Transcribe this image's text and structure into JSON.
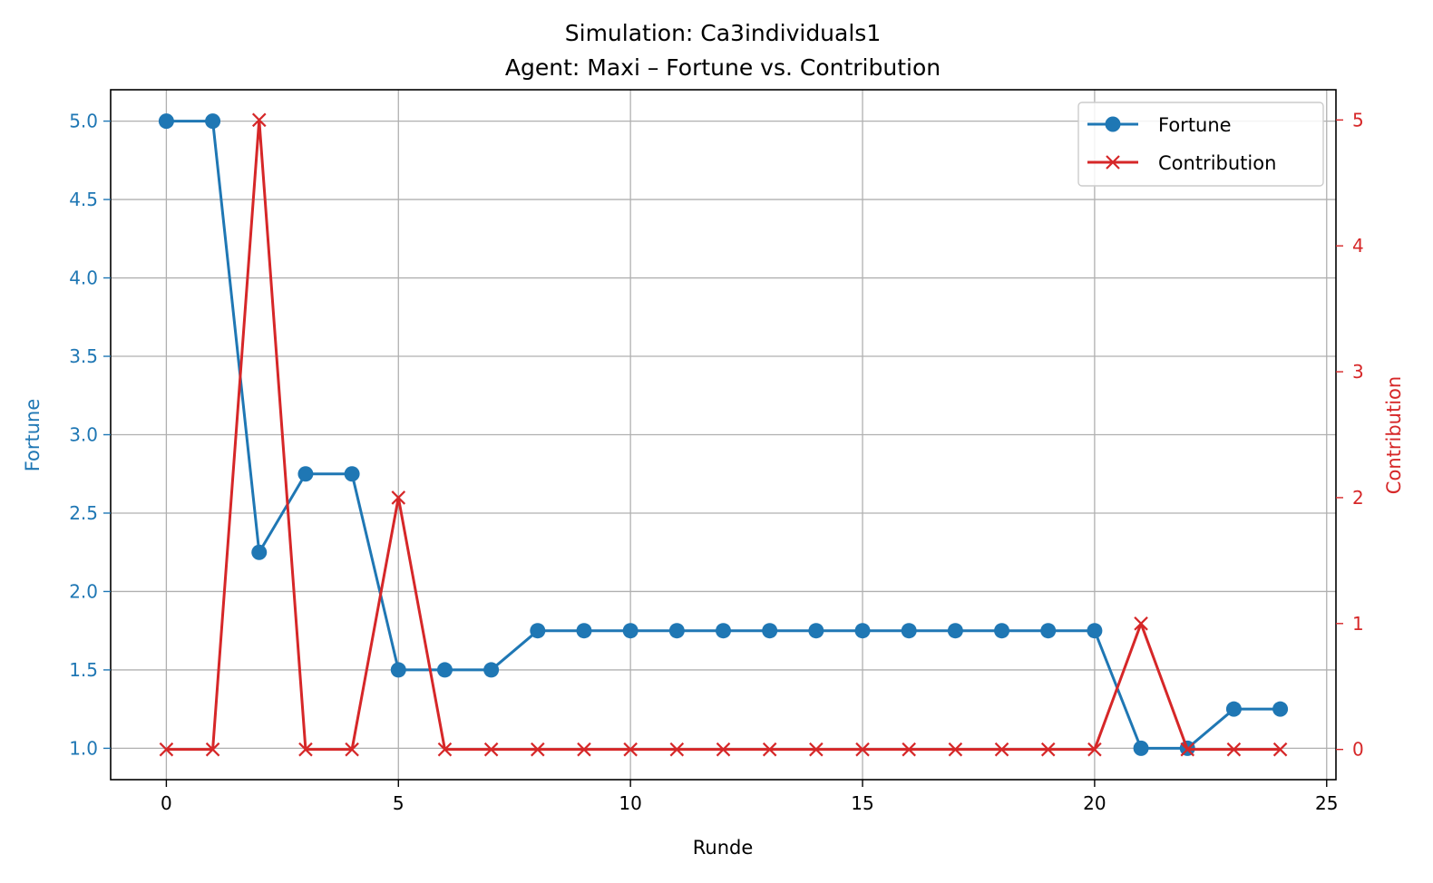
{
  "chart_data": {
    "type": "line",
    "title": "Simulation: Ca3individuals1",
    "subtitle": "Agent: Maxi – Fortune vs. Contribution",
    "xlabel": "Runde",
    "ylabel_left": "Fortune",
    "ylabel_right": "Contribution",
    "xlim": [
      -1.2,
      25.2
    ],
    "ylim_left": [
      0.8,
      5.2
    ],
    "ylim_right": [
      -0.24,
      5.24
    ],
    "x_ticks": [
      0,
      5,
      10,
      15,
      20,
      25
    ],
    "y_ticks_left": [
      1.0,
      1.5,
      2.0,
      2.5,
      3.0,
      3.5,
      4.0,
      4.5,
      5.0
    ],
    "y_ticks_right": [
      0,
      1,
      2,
      3,
      4,
      5
    ],
    "grid": true,
    "legend_position": "top-right",
    "x": [
      0,
      1,
      2,
      3,
      4,
      5,
      6,
      7,
      8,
      9,
      10,
      11,
      12,
      13,
      14,
      15,
      16,
      17,
      18,
      19,
      20,
      21,
      22,
      23,
      24
    ],
    "series": [
      {
        "name": "Fortune",
        "axis": "left",
        "color": "#1f77b4",
        "marker": "circle",
        "values": [
          5.0,
          5.0,
          2.25,
          2.75,
          2.75,
          1.5,
          1.5,
          1.5,
          1.75,
          1.75,
          1.75,
          1.75,
          1.75,
          1.75,
          1.75,
          1.75,
          1.75,
          1.75,
          1.75,
          1.75,
          1.75,
          1.0,
          1.0,
          1.25,
          1.25
        ]
      },
      {
        "name": "Contribution",
        "axis": "right",
        "color": "#d62728",
        "marker": "x",
        "values": [
          0,
          0,
          5,
          0,
          0,
          2,
          0,
          0,
          0,
          0,
          0,
          0,
          0,
          0,
          0,
          0,
          0,
          0,
          0,
          0,
          0,
          1,
          0,
          0,
          0
        ]
      }
    ]
  }
}
